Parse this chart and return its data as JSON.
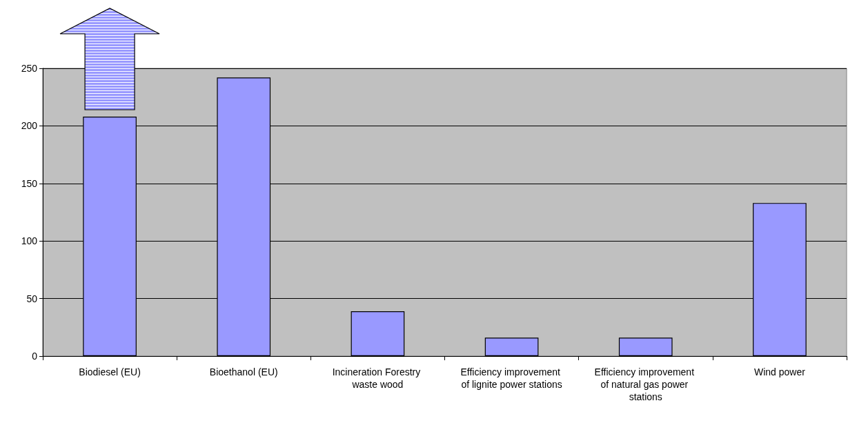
{
  "chart_data": {
    "type": "bar",
    "categories": [
      "Biodiesel (EU)",
      "Bioethanol (EU)",
      "Incineration Forestry waste wood",
      "Efficiency improvement of lignite power stations",
      "Efficiency improvement of natural gas power stations",
      "Wind power"
    ],
    "values": [
      208,
      242,
      39,
      16,
      16,
      133
    ],
    "color": "#9999ff",
    "ylim": [
      0,
      250
    ],
    "yticks": [
      0,
      50,
      100,
      150,
      200,
      250
    ],
    "grid": "y"
  }
}
